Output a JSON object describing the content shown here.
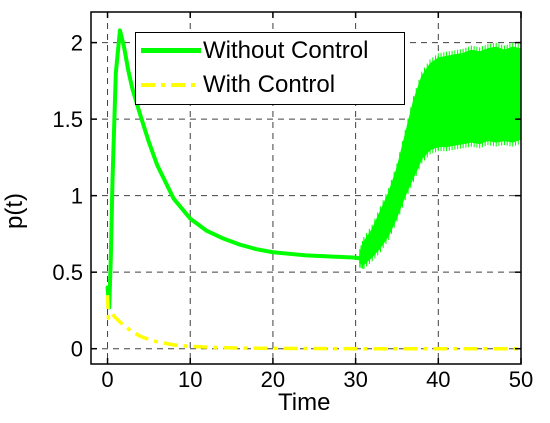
{
  "chart_data": {
    "type": "line",
    "xlabel": "Time",
    "ylabel": "p(t)",
    "xlim": [
      -2,
      50
    ],
    "ylim": [
      -0.1,
      2.2
    ],
    "xticks": [
      0,
      10,
      20,
      30,
      40,
      50
    ],
    "yticks": [
      0,
      0.5,
      1,
      1.5,
      2
    ],
    "xtick_labels": [
      "0",
      "10",
      "20",
      "30",
      "40",
      "50"
    ],
    "ytick_labels": [
      "0",
      "0.5",
      "1",
      "1.5",
      "2"
    ],
    "grid": true,
    "legend_position": "top-left",
    "series": [
      {
        "name": "Without Control",
        "color": "#00ff00",
        "style": "solid",
        "x": [
          0,
          0.2,
          0.4,
          0.6,
          1.0,
          1.5,
          2.0,
          2.5,
          3,
          4,
          5,
          6,
          8,
          10,
          12,
          14,
          16,
          18,
          20,
          22,
          24,
          26,
          28,
          30,
          30.5
        ],
        "y": [
          0.4,
          0.27,
          0.6,
          1.1,
          1.8,
          2.08,
          1.97,
          1.82,
          1.7,
          1.52,
          1.35,
          1.2,
          0.98,
          0.85,
          0.77,
          0.72,
          0.68,
          0.65,
          0.63,
          0.62,
          0.61,
          0.605,
          0.6,
          0.595,
          0.59
        ],
        "oscillation_band": {
          "x": [
            30.5,
            31,
            32,
            33,
            34,
            35,
            36,
            37,
            38,
            39,
            40,
            41,
            42,
            43,
            44,
            45,
            46,
            47,
            48,
            49,
            50
          ],
          "upper": [
            0.62,
            0.7,
            0.78,
            0.9,
            1.02,
            1.18,
            1.4,
            1.62,
            1.78,
            1.86,
            1.9,
            1.91,
            1.92,
            1.93,
            1.95,
            1.94,
            1.96,
            1.97,
            1.95,
            1.97,
            1.96
          ],
          "lower": [
            0.56,
            0.55,
            0.6,
            0.66,
            0.74,
            0.86,
            1.0,
            1.12,
            1.24,
            1.3,
            1.32,
            1.32,
            1.33,
            1.34,
            1.35,
            1.34,
            1.36,
            1.35,
            1.36,
            1.35,
            1.37
          ]
        }
      },
      {
        "name": "With Control",
        "color": "#ffff00",
        "style": "dashdot",
        "x": [
          0,
          0.1,
          0.3,
          0.5,
          1,
          2,
          3,
          4,
          5,
          6,
          8,
          10,
          12,
          15,
          20,
          25,
          30,
          35,
          40,
          45,
          50
        ],
        "y": [
          0.35,
          0.2,
          0.22,
          0.23,
          0.2,
          0.15,
          0.11,
          0.08,
          0.06,
          0.045,
          0.025,
          0.015,
          0.01,
          0.005,
          0.002,
          0.001,
          0.0,
          0.0,
          0.0,
          0.0,
          0.0
        ]
      }
    ]
  }
}
